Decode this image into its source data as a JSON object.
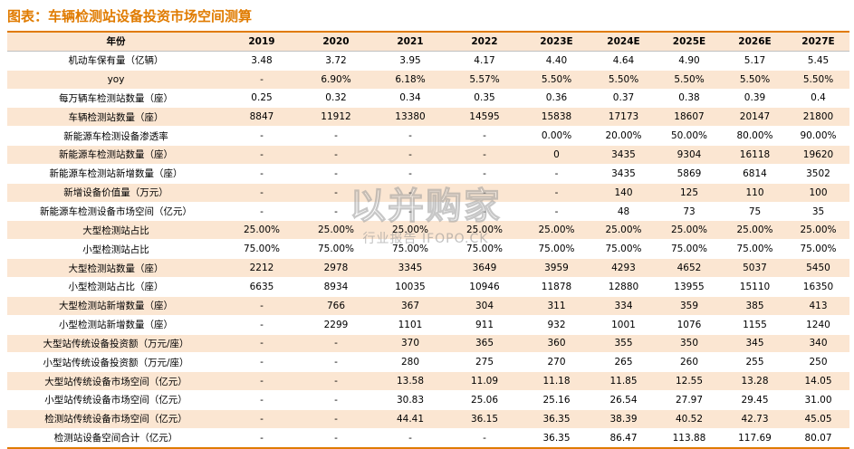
{
  "title": "图表：车辆检测站设备投资市场空间测算",
  "watermark": {
    "main": "以并购家",
    "sub": "行业报告 IFOPO.CK"
  },
  "table": {
    "header": [
      "年份",
      "2019",
      "2020",
      "2021",
      "2022",
      "2023E",
      "2024E",
      "2025E",
      "2026E",
      "2027E"
    ],
    "rows": [
      {
        "label": "机动车保有量（亿辆）",
        "values": [
          "3.48",
          "3.72",
          "3.95",
          "4.17",
          "4.40",
          "4.64",
          "4.90",
          "5.17",
          "5.45"
        ]
      },
      {
        "label": "yoy",
        "values": [
          "-",
          "6.90%",
          "6.18%",
          "5.57%",
          "5.50%",
          "5.50%",
          "5.50%",
          "5.50%",
          "5.50%"
        ]
      },
      {
        "label": "每万辆车检测站数量（座）",
        "values": [
          "0.25",
          "0.32",
          "0.34",
          "0.35",
          "0.36",
          "0.37",
          "0.38",
          "0.39",
          "0.4"
        ]
      },
      {
        "label": "车辆检测站数量（座）",
        "values": [
          "8847",
          "11912",
          "13380",
          "14595",
          "15838",
          "17173",
          "18607",
          "20147",
          "21800"
        ]
      },
      {
        "label": "新能源车检测设备渗透率",
        "values": [
          "-",
          "-",
          "-",
          "-",
          "0.00%",
          "20.00%",
          "50.00%",
          "80.00%",
          "90.00%"
        ]
      },
      {
        "label": "新能源车检测站数量（座）",
        "values": [
          "-",
          "-",
          "-",
          "-",
          "0",
          "3435",
          "9304",
          "16118",
          "19620"
        ]
      },
      {
        "label": "新能源车检测站新增数量（座）",
        "values": [
          "-",
          "-",
          "-",
          "-",
          "-",
          "3435",
          "5869",
          "6814",
          "3502"
        ]
      },
      {
        "label": "新增设备价值量（万元）",
        "values": [
          "-",
          "-",
          "-",
          "-",
          "-",
          "140",
          "125",
          "110",
          "100"
        ]
      },
      {
        "label": "新能源车检测设备市场空间（亿元）",
        "values": [
          "-",
          "-",
          "-",
          "-",
          "-",
          "48",
          "73",
          "75",
          "35"
        ]
      },
      {
        "label": "大型检测站占比",
        "values": [
          "25.00%",
          "25.00%",
          "25.00%",
          "25.00%",
          "25.00%",
          "25.00%",
          "25.00%",
          "25.00%",
          "25.00%"
        ]
      },
      {
        "label": "小型检测站占比",
        "values": [
          "75.00%",
          "75.00%",
          "75.00%",
          "75.00%",
          "75.00%",
          "75.00%",
          "75.00%",
          "75.00%",
          "75.00%"
        ]
      },
      {
        "label": "大型检测站数量（座）",
        "values": [
          "2212",
          "2978",
          "3345",
          "3649",
          "3959",
          "4293",
          "4652",
          "5037",
          "5450"
        ]
      },
      {
        "label": "小型检测站占比（座）",
        "values": [
          "6635",
          "8934",
          "10035",
          "10946",
          "11878",
          "12880",
          "13955",
          "15110",
          "16350"
        ]
      },
      {
        "label": "大型检测站新增数量（座）",
        "values": [
          "-",
          "766",
          "367",
          "304",
          "311",
          "334",
          "359",
          "385",
          "413"
        ]
      },
      {
        "label": "小型检测站新增数量（座）",
        "values": [
          "-",
          "2299",
          "1101",
          "911",
          "932",
          "1001",
          "1076",
          "1155",
          "1240"
        ]
      },
      {
        "label": "大型站传统设备投资额（万元/座）",
        "values": [
          "-",
          "-",
          "370",
          "365",
          "360",
          "355",
          "350",
          "345",
          "340"
        ]
      },
      {
        "label": "小型站传统设备投资额（万元/座）",
        "values": [
          "-",
          "-",
          "280",
          "275",
          "270",
          "265",
          "260",
          "255",
          "250"
        ]
      },
      {
        "label": "大型站传统设备市场空间（亿元）",
        "values": [
          "-",
          "-",
          "13.58",
          "11.09",
          "11.18",
          "11.85",
          "12.55",
          "13.28",
          "14.05"
        ]
      },
      {
        "label": "小型站传统设备市场空间（亿元）",
        "values": [
          "-",
          "-",
          "30.83",
          "25.06",
          "25.16",
          "26.54",
          "27.97",
          "29.45",
          "31.00"
        ]
      },
      {
        "label": "检测站传统设备市场空间（亿元）",
        "values": [
          "-",
          "-",
          "44.41",
          "36.15",
          "36.35",
          "38.39",
          "40.52",
          "42.73",
          "45.05"
        ]
      },
      {
        "label": "检测站设备空间合计（亿元）",
        "values": [
          "-",
          "-",
          "-",
          "-",
          "36.35",
          "86.47",
          "113.88",
          "117.69",
          "80.07"
        ]
      }
    ]
  }
}
